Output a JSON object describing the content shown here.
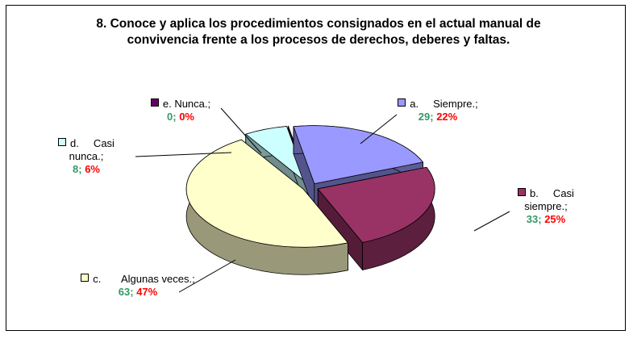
{
  "chart_data": {
    "type": "pie3d",
    "title": "8.    Conoce y aplica los procedimientos consignados en el actual manual de convivencia frente a los procesos de derechos, deberes y faltas.",
    "categories": [
      "a.     Siempre.;",
      "b.     Casi siempre.;",
      "c.       Algunas veces.;",
      "d.     Casi nunca.;",
      "e. Nunca.;"
    ],
    "values": [
      29,
      33,
      63,
      8,
      0
    ],
    "value_labels": [
      "29;",
      "33;",
      "63;",
      "8;",
      "0;"
    ],
    "percent_labels": [
      "22%",
      "25%",
      "47%",
      "6%",
      "0%"
    ],
    "colors": [
      "#9999ff",
      "#993366",
      "#ffffcc",
      "#ccffff",
      "#660066"
    ]
  }
}
